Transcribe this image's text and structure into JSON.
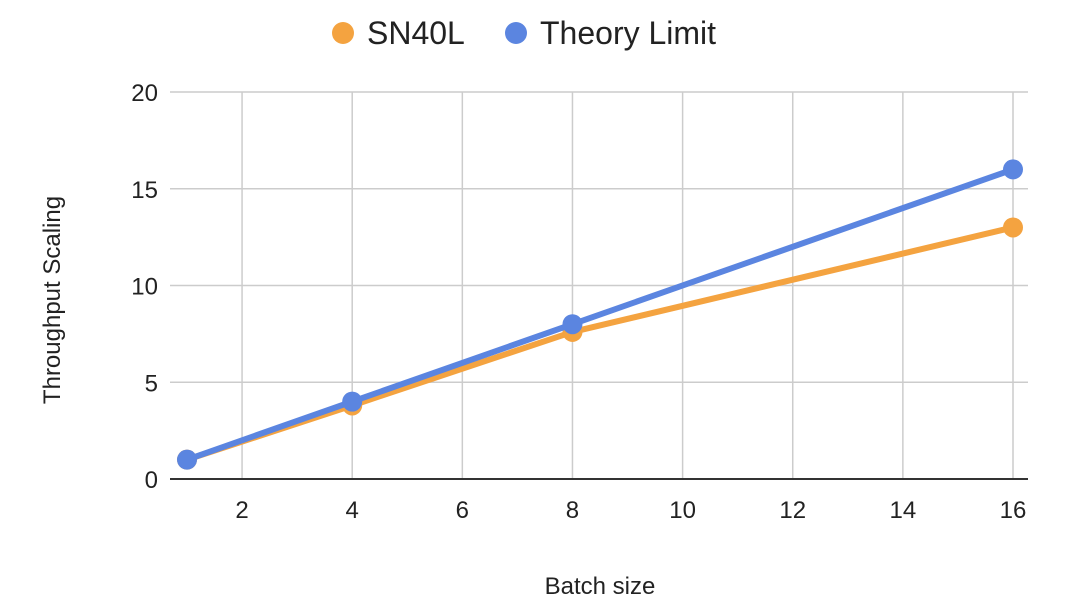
{
  "chart_data": {
    "type": "line",
    "title": "",
    "xlabel": "Batch size",
    "ylabel": "Throughput Scaling",
    "xlim": [
      1,
      16
    ],
    "ylim": [
      0,
      20
    ],
    "x_ticks": [
      2,
      4,
      6,
      8,
      10,
      12,
      14,
      16
    ],
    "y_ticks": [
      0,
      5,
      10,
      15,
      20
    ],
    "grid": true,
    "legend_position": "top",
    "series": [
      {
        "name": "SN40L",
        "color": "#F4A340",
        "x": [
          1,
          4,
          8,
          16
        ],
        "y": [
          1,
          3.8,
          7.6,
          13
        ]
      },
      {
        "name": "Theory Limit",
        "color": "#5B85E0",
        "x": [
          1,
          4,
          8,
          16
        ],
        "y": [
          1,
          4,
          8,
          16
        ]
      }
    ]
  }
}
